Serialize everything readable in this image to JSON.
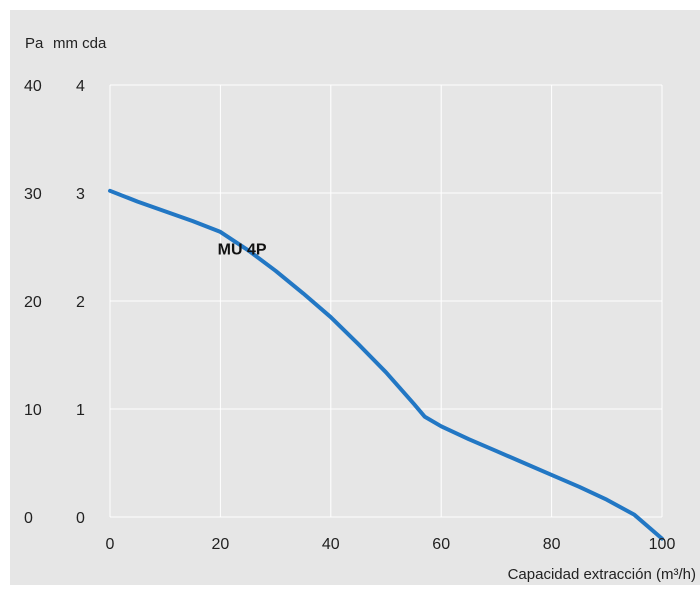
{
  "chart_data": {
    "type": "line",
    "title": "",
    "xlabel": "Capacidad extracción (m³/h)",
    "y_unit_left": "Pa",
    "y_unit_right": "mm cda",
    "xlim": [
      0,
      100
    ],
    "ylim": [
      0,
      40
    ],
    "y2lim": [
      0,
      4
    ],
    "x_ticks": [
      "0",
      "20",
      "40",
      "60",
      "80",
      "100"
    ],
    "y_ticks_pa": [
      "0",
      "10",
      "20",
      "30",
      "40"
    ],
    "y_ticks_mmcda": [
      "0",
      "1",
      "2",
      "3",
      "4"
    ],
    "grid": true,
    "line_color": "#2277c4",
    "series": [
      {
        "name": "MU 4P",
        "x": [
          0,
          5,
          10,
          15,
          20,
          25,
          30,
          35,
          40,
          45,
          50,
          55,
          57,
          60,
          65,
          70,
          75,
          80,
          85,
          90,
          95,
          100
        ],
        "y": [
          30.2,
          29.2,
          28.3,
          27.4,
          26.4,
          24.7,
          22.8,
          20.7,
          18.5,
          16.0,
          13.4,
          10.5,
          9.3,
          8.4,
          7.2,
          6.1,
          5.0,
          3.9,
          2.8,
          1.6,
          0.2,
          -2.0
        ]
      }
    ]
  }
}
